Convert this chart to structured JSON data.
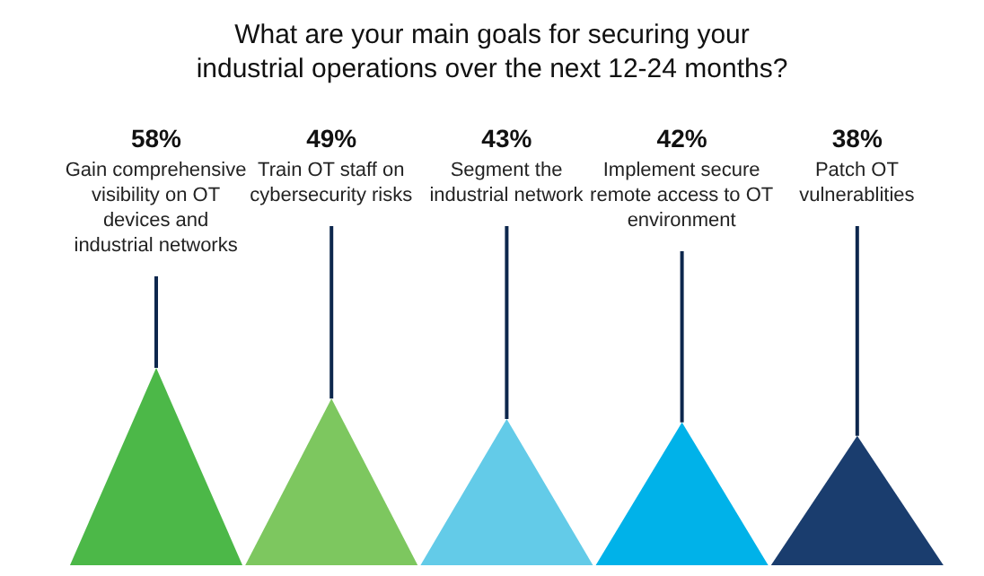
{
  "chart_data": {
    "type": "other",
    "title": "What are your main goals for securing your\nindustrial operations over the next 12-24 months?",
    "categories": [
      "Gain comprehensive visibility on OT devices and industrial networks",
      "Train OT staff on cybersecurity risks",
      "Segment the industrial network",
      "Implement secure remote access to OT environment",
      "Patch OT vulnerablities"
    ],
    "values": [
      58,
      49,
      43,
      42,
      38
    ],
    "value_labels": [
      "58%",
      "49%",
      "43%",
      "42%",
      "38%"
    ],
    "colors": [
      "#4cb848",
      "#7dc75f",
      "#63cbe8",
      "#00b2e9",
      "#1a3d6e"
    ]
  }
}
